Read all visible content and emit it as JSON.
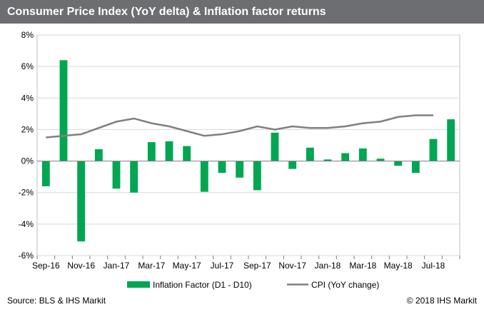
{
  "header": {
    "title": "Consumer Price Index (YoY delta) & Inflation factor returns"
  },
  "footer": {
    "source": "Source: BLS & IHS Markit",
    "copyright": "© 2018 IHS Markit"
  },
  "colors": {
    "bars": "#00a651",
    "line": "#808080",
    "title_bg": "#6d6e71"
  },
  "chart_data": {
    "type": "bar",
    "title": "Consumer Price Index (YoY delta) & Inflation factor returns",
    "xlabel": "",
    "ylabel": "",
    "ylim": [
      -6,
      8
    ],
    "yticks": [
      -6,
      -4,
      -2,
      0,
      2,
      4,
      6,
      8
    ],
    "ytick_labels": [
      "-6%",
      "-4%",
      "-2%",
      "0%",
      "2%",
      "4%",
      "6%",
      "8%"
    ],
    "categories": [
      "Sep-16",
      "Oct-16",
      "Nov-16",
      "Dec-16",
      "Jan-17",
      "Feb-17",
      "Mar-17",
      "Apr-17",
      "May-17",
      "Jun-17",
      "Jul-17",
      "Aug-17",
      "Sep-17",
      "Oct-17",
      "Nov-17",
      "Dec-17",
      "Jan-18",
      "Feb-18",
      "Mar-18",
      "Apr-18",
      "May-18",
      "Jun-18",
      "Jul-18",
      "Aug-18"
    ],
    "xtick_labels": [
      "Sep-16",
      "Nov-16",
      "Jan-17",
      "Mar-17",
      "May-17",
      "Jul-17",
      "Sep-17",
      "Nov-17",
      "Jan-18",
      "Mar-18",
      "May-18",
      "Jul-18"
    ],
    "grid": true,
    "legend_position": "bottom",
    "series": [
      {
        "name": "Inflation Factor (D1 - D10)",
        "type": "bar",
        "values": [
          -1.6,
          6.4,
          -5.1,
          0.75,
          -1.75,
          -2.0,
          1.2,
          1.25,
          0.95,
          -1.95,
          -0.75,
          -1.05,
          -1.85,
          1.8,
          -0.5,
          0.85,
          0.1,
          0.5,
          0.8,
          0.15,
          -0.3,
          -0.75,
          1.4,
          2.65
        ]
      },
      {
        "name": "CPI (YoY change)",
        "type": "line",
        "values": [
          1.5,
          1.6,
          1.7,
          2.1,
          2.5,
          2.7,
          2.4,
          2.2,
          1.9,
          1.6,
          1.7,
          1.9,
          2.2,
          2.0,
          2.2,
          2.1,
          2.1,
          2.2,
          2.4,
          2.5,
          2.8,
          2.9,
          2.9,
          null
        ]
      }
    ]
  }
}
